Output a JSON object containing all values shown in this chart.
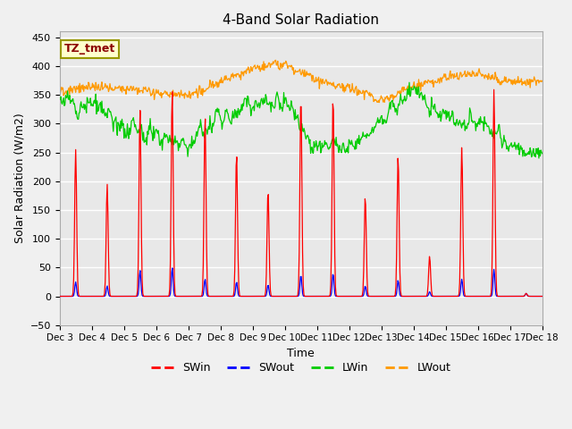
{
  "title": "4-Band Solar Radiation",
  "xlabel": "Time",
  "ylabel": "Solar Radiation (W/m2)",
  "ylim": [
    -50,
    460
  ],
  "annotation": "TZ_tmet",
  "legend_labels": [
    "SWin",
    "SWout",
    "LWin",
    "LWout"
  ],
  "legend_colors": [
    "#ff0000",
    "#0000ff",
    "#00cc00",
    "#ff9900"
  ],
  "x_tick_labels": [
    "Dec 3",
    "Dec 4",
    "Dec 5",
    "Dec 6",
    "Dec 7",
    "Dec 8",
    "Dec 9",
    "Dec 10",
    "Dec 11",
    "Dec 12",
    "Dec 13",
    "Dec 14",
    "Dec 15",
    "Dec 16",
    "Dec 17",
    "Dec 18"
  ],
  "background_color": "#e8e8e8",
  "grid_color": "#ffffff",
  "fig_facecolor": "#f0f0f0",
  "n_days": 15,
  "pts_per_day": 48,
  "day_peaks_SWin": [
    255,
    195,
    325,
    360,
    315,
    250,
    185,
    350,
    350,
    175,
    245,
    70,
    260,
    360,
    5
  ],
  "day_peaks_SWout": [
    25,
    18,
    45,
    50,
    30,
    25,
    20,
    37,
    40,
    18,
    28,
    8,
    30,
    47,
    5
  ],
  "lwin_day_vals": [
    340,
    335,
    295,
    280,
    270,
    315,
    335,
    330,
    260,
    260,
    305,
    360,
    310,
    305,
    260,
    240
  ],
  "lout_day_vals": [
    353,
    365,
    360,
    355,
    350,
    375,
    395,
    405,
    375,
    365,
    340,
    365,
    378,
    390,
    370,
    375
  ]
}
